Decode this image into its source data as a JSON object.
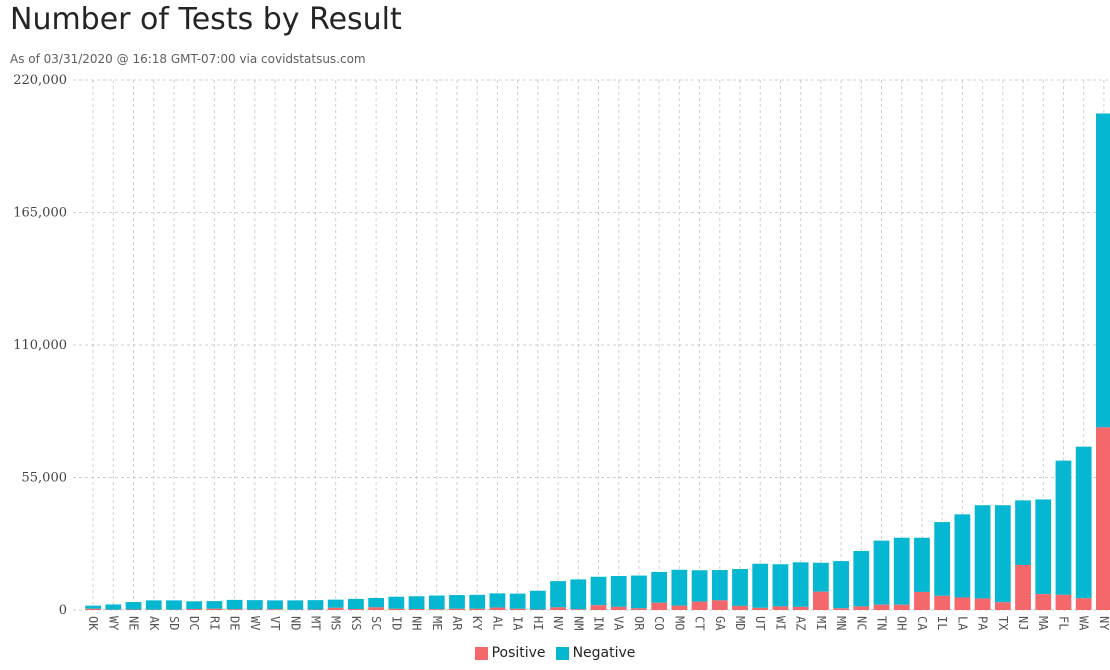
{
  "header": {
    "title": "Number of Tests by Result",
    "subtitle": "As of 03/31/2020 @ 16:18 GMT-07:00 via covidstatsus.com"
  },
  "colors": {
    "positive": "#f4676a",
    "negative": "#05b7d0",
    "grid": "#cfcfcf"
  },
  "chart_data": {
    "type": "bar",
    "stacked": true,
    "title": "Number of Tests by Result",
    "subtitle": "As of 03/31/2020 @ 16:18 GMT-07:00 via covidstatsus.com",
    "xlabel": "",
    "ylabel": "",
    "ylim": [
      0,
      220000
    ],
    "yticks": [
      0,
      55000,
      110000,
      165000,
      220000
    ],
    "ytick_labels": [
      "0",
      "55,000",
      "110,000",
      "165,000",
      "220,000"
    ],
    "grid": true,
    "legend_position": "bottom-center",
    "categories": [
      "OK",
      "WY",
      "NE",
      "AK",
      "SD",
      "DC",
      "RI",
      "DE",
      "WV",
      "VT",
      "ND",
      "MT",
      "MS",
      "KS",
      "SC",
      "ID",
      "NH",
      "ME",
      "AR",
      "KY",
      "AL",
      "IA",
      "HI",
      "NV",
      "NM",
      "IN",
      "VA",
      "OR",
      "CO",
      "MO",
      "CT",
      "GA",
      "MD",
      "UT",
      "WI",
      "AZ",
      "MI",
      "MN",
      "NC",
      "TN",
      "OH",
      "CA",
      "IL",
      "LA",
      "PA",
      "TX",
      "NJ",
      "MA",
      "FL",
      "WA",
      "NY"
    ],
    "series": [
      {
        "name": "Positive",
        "values": [
          500,
          100,
          200,
          100,
          100,
          400,
          500,
          300,
          200,
          300,
          100,
          200,
          900,
          400,
          1100,
          500,
          400,
          300,
          500,
          500,
          1000,
          500,
          200,
          1100,
          300,
          2000,
          1300,
          700,
          3000,
          1800,
          3500,
          4000,
          1700,
          900,
          1500,
          1300,
          7600,
          700,
          1500,
          2200,
          2200,
          7500,
          5900,
          5200,
          4800,
          3200,
          18700,
          6600,
          6300,
          4900,
          75800
        ]
      },
      {
        "name": "Negative",
        "values": [
          1300,
          2200,
          3100,
          3900,
          3900,
          3200,
          3200,
          3900,
          3900,
          3700,
          3900,
          3900,
          3400,
          4200,
          3900,
          5000,
          5300,
          5700,
          5700,
          5800,
          5900,
          6300,
          7800,
          10900,
          12400,
          11800,
          12800,
          13600,
          12800,
          14900,
          13000,
          12600,
          15300,
          18300,
          17500,
          18500,
          12000,
          19600,
          23000,
          26600,
          27800,
          22500,
          30600,
          34500,
          38700,
          40300,
          26800,
          39300,
          55700,
          62900,
          130300
        ]
      }
    ]
  },
  "legend": {
    "positive_label": "Positive",
    "negative_label": "Negative"
  }
}
